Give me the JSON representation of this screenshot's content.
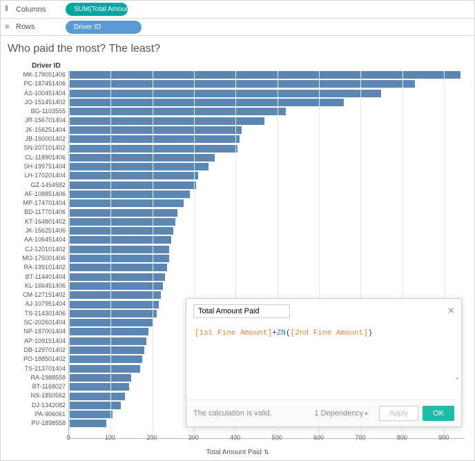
{
  "shelves": {
    "columns_label": "Columns",
    "rows_label": "Rows",
    "columns_pill": "SUM(Total Amount P...",
    "rows_pill": "Driver ID"
  },
  "title": "Who paid the most? The least?",
  "y_axis_header": "Driver ID",
  "x_axis_title": "Total Amount Paid",
  "chart": {
    "type": "bar",
    "xlim": [
      0,
      950
    ],
    "xtick_step": 100,
    "bar_color": "#5b87b2",
    "grid_color": "#e8e8e8",
    "background_color": "#ffffff",
    "label_fontsize": 9,
    "data": [
      {
        "label": "MK-179051406",
        "value": 940
      },
      {
        "label": "PC-187451406",
        "value": 830
      },
      {
        "label": "AS-100451404",
        "value": 750
      },
      {
        "label": "JO-151451402",
        "value": 660
      },
      {
        "label": "BG-1103555",
        "value": 520
      },
      {
        "label": "JR-156701404",
        "value": 470
      },
      {
        "label": "JK-156251404",
        "value": 415
      },
      {
        "label": "JB-160001402",
        "value": 410
      },
      {
        "label": "SN-207101402",
        "value": 405
      },
      {
        "label": "CL-118901406",
        "value": 350
      },
      {
        "label": "SH-199751404",
        "value": 335
      },
      {
        "label": "LH-170201404",
        "value": 310
      },
      {
        "label": "GZ-1454582",
        "value": 305
      },
      {
        "label": "AF-108851406",
        "value": 290
      },
      {
        "label": "MP-174701404",
        "value": 275
      },
      {
        "label": "BD-117701406",
        "value": 260
      },
      {
        "label": "KT-164801402",
        "value": 255
      },
      {
        "label": "JK-156251406",
        "value": 250
      },
      {
        "label": "AA-106451404",
        "value": 245
      },
      {
        "label": "CJ-120101402",
        "value": 240
      },
      {
        "label": "MO-175001406",
        "value": 240
      },
      {
        "label": "RA-199101402",
        "value": 235
      },
      {
        "label": "BT-114401404",
        "value": 230
      },
      {
        "label": "KL-166451406",
        "value": 225
      },
      {
        "label": "CM-127151402",
        "value": 220
      },
      {
        "label": "AJ-107951404",
        "value": 215
      },
      {
        "label": "TS-214301406",
        "value": 210
      },
      {
        "label": "SC-202601404",
        "value": 200
      },
      {
        "label": "NP-187001404",
        "value": 190
      },
      {
        "label": "AP-109151404",
        "value": 185
      },
      {
        "label": "DB-129701402",
        "value": 180
      },
      {
        "label": "PO-188501402",
        "value": 175
      },
      {
        "label": "TS-213701404",
        "value": 170
      },
      {
        "label": "RA-1988558",
        "value": 150
      },
      {
        "label": "BT-1168027",
        "value": 145
      },
      {
        "label": "NS-1850562",
        "value": 135
      },
      {
        "label": "DJ-1342082",
        "value": 125
      },
      {
        "label": "PA-906061",
        "value": 105
      },
      {
        "label": "PV-1898558",
        "value": 90
      }
    ]
  },
  "x_ticks": [
    "0",
    "100",
    "200",
    "300",
    "400",
    "500",
    "600",
    "700",
    "800",
    "900"
  ],
  "dialog": {
    "name": "Total Amount Paid",
    "formula_field1": "[1st Fine Amount]",
    "formula_plus": "+",
    "formula_fn": "ZN",
    "formula_open": "(",
    "formula_field2": "[2nd Fine Amount]",
    "formula_close": ")",
    "status": "The calculation is valid.",
    "dependency": "1 Dependency",
    "apply": "Apply",
    "ok": "OK"
  }
}
